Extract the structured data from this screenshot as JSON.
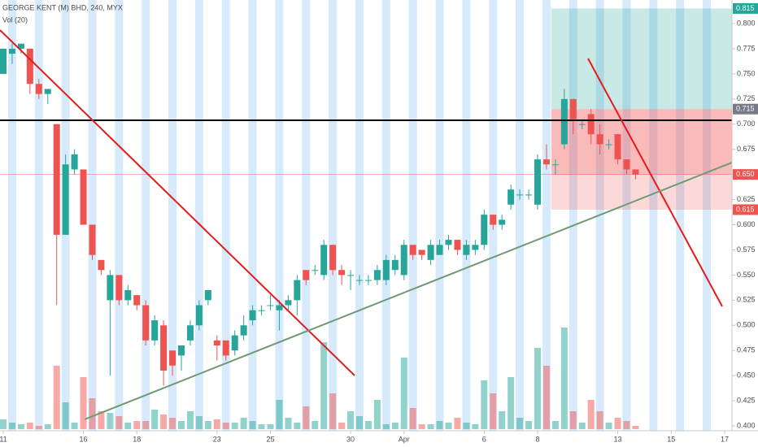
{
  "chart_data": {
    "type": "candlestick",
    "title": "GEORGE KENT (M) BHD, 240, MYX",
    "subtitle": "Vol (20)",
    "categories": [
      "11",
      null,
      null,
      null,
      null,
      null,
      null,
      null,
      null,
      "16",
      null,
      null,
      null,
      null,
      null,
      "18",
      null,
      null,
      null,
      null,
      null,
      null,
      null,
      null,
      "23",
      null,
      null,
      null,
      null,
      null,
      "25",
      null,
      null,
      null,
      null,
      null,
      null,
      null,
      null,
      "30",
      null,
      null,
      null,
      null,
      null,
      "Apr",
      null,
      null,
      null,
      null,
      null,
      null,
      null,
      null,
      "6",
      null,
      null,
      null,
      null,
      null,
      "8",
      null,
      null,
      null,
      null,
      null,
      null,
      null,
      null,
      "13",
      null,
      null,
      null,
      null,
      null,
      "15",
      null,
      null,
      null,
      null,
      null,
      "17"
    ],
    "open": [
      0.75,
      0.77,
      0.775,
      0.775,
      0.74,
      0.73,
      0.7,
      0.59,
      0.655,
      0.655,
      0.6,
      0.565,
      0.525,
      0.55,
      0.525,
      0.53,
      0.52,
      0.485,
      0.5,
      0.475,
      0.47,
      0.485,
      0.5,
      0.525,
      0.485,
      0.485,
      0.475,
      0.49,
      0.505,
      0.515,
      0.52,
      0.515,
      0.52,
      0.525,
      0.555,
      0.555,
      0.55,
      0.58,
      0.555,
      0.55,
      0.545,
      0.545,
      0.545,
      0.545,
      0.555,
      0.55,
      0.58,
      0.575,
      0.565,
      0.57,
      0.58,
      0.585,
      0.57,
      0.575,
      0.58,
      0.61,
      0.6,
      0.62,
      0.63,
      0.63,
      0.62,
      0.665,
      0.66,
      0.68,
      0.725,
      0.7,
      0.71,
      0.69,
      0.68,
      0.69,
      0.665,
      0.655,
      null,
      null,
      null,
      null,
      null,
      null,
      null,
      null,
      null,
      null
    ],
    "high": [
      0.775,
      0.78,
      0.78,
      0.775,
      0.745,
      0.735,
      0.7,
      0.67,
      0.675,
      0.655,
      0.6,
      0.565,
      0.555,
      0.55,
      0.54,
      0.53,
      0.525,
      0.51,
      0.505,
      0.475,
      0.48,
      0.505,
      0.525,
      0.535,
      0.49,
      0.485,
      0.495,
      0.51,
      0.52,
      0.52,
      0.53,
      0.525,
      0.53,
      0.55,
      0.555,
      0.56,
      0.585,
      0.58,
      0.56,
      0.555,
      0.55,
      0.55,
      0.56,
      0.57,
      0.57,
      0.585,
      0.58,
      0.575,
      0.585,
      0.585,
      0.59,
      0.585,
      0.585,
      0.585,
      0.615,
      0.61,
      0.61,
      0.64,
      0.635,
      0.635,
      0.67,
      0.68,
      0.665,
      0.735,
      0.725,
      0.705,
      0.715,
      0.7,
      0.685,
      0.69,
      0.665,
      0.655,
      null,
      null,
      null,
      null,
      null,
      null,
      null,
      null,
      null,
      null
    ],
    "low": [
      0.75,
      0.76,
      0.77,
      0.73,
      0.725,
      0.72,
      0.52,
      0.59,
      0.65,
      0.6,
      0.565,
      0.55,
      0.45,
      0.52,
      0.52,
      0.515,
      0.48,
      0.48,
      0.44,
      0.45,
      0.455,
      0.48,
      0.495,
      0.52,
      0.465,
      0.465,
      0.47,
      0.485,
      0.5,
      0.51,
      0.515,
      0.495,
      0.515,
      0.51,
      0.54,
      0.55,
      0.545,
      0.55,
      0.54,
      0.535,
      0.54,
      0.54,
      0.54,
      0.54,
      0.55,
      0.545,
      0.565,
      0.565,
      0.56,
      0.57,
      0.575,
      0.57,
      0.565,
      0.57,
      0.575,
      0.595,
      0.595,
      0.615,
      0.625,
      0.625,
      0.615,
      0.655,
      0.65,
      0.675,
      0.69,
      0.695,
      0.68,
      0.67,
      0.675,
      0.66,
      0.65,
      0.645,
      null,
      null,
      null,
      null,
      null,
      null,
      null,
      null,
      null,
      null
    ],
    "close": [
      0.775,
      0.775,
      0.78,
      0.74,
      0.73,
      0.735,
      0.59,
      0.66,
      0.67,
      0.6,
      0.57,
      0.555,
      0.55,
      0.525,
      0.535,
      0.52,
      0.485,
      0.505,
      0.455,
      0.46,
      0.48,
      0.5,
      0.52,
      0.535,
      0.48,
      0.47,
      0.49,
      0.5,
      0.515,
      0.515,
      0.52,
      0.52,
      0.525,
      0.545,
      0.545,
      0.555,
      0.58,
      0.555,
      0.55,
      0.55,
      0.545,
      0.545,
      0.555,
      0.565,
      0.565,
      0.58,
      0.57,
      0.57,
      0.58,
      0.58,
      0.585,
      0.575,
      0.58,
      0.58,
      0.61,
      0.6,
      0.605,
      0.635,
      0.63,
      0.63,
      0.665,
      0.66,
      0.66,
      0.725,
      0.705,
      0.7,
      0.69,
      0.68,
      0.68,
      0.665,
      0.655,
      0.65,
      null,
      null,
      null,
      null,
      null,
      null,
      null,
      null,
      null,
      null
    ],
    "volume": [
      12,
      8,
      6,
      8,
      4,
      6,
      78,
      33,
      8,
      64,
      38,
      22,
      20,
      16,
      8,
      10,
      10,
      24,
      18,
      14,
      10,
      22,
      16,
      10,
      12,
      8,
      8,
      14,
      10,
      6,
      6,
      36,
      14,
      8,
      28,
      10,
      107,
      44,
      8,
      22,
      16,
      10,
      36,
      6,
      8,
      88,
      26,
      6,
      6,
      10,
      8,
      14,
      8,
      6,
      60,
      44,
      22,
      64,
      14,
      10,
      100,
      78,
      10,
      125,
      22,
      8,
      36,
      22,
      8,
      14,
      10,
      4,
      null,
      null,
      null,
      null,
      null,
      null,
      null,
      null,
      null,
      null
    ],
    "up_color": "#26a69a",
    "down_color": "#ef5350",
    "ylim": [
      0.3975,
      0.8225
    ],
    "yticks": [
      {
        "value": 0.4,
        "label": "0.400"
      },
      {
        "value": 0.425,
        "label": "0.425"
      },
      {
        "value": 0.45,
        "label": "0.450"
      },
      {
        "value": 0.475,
        "label": "0.475"
      },
      {
        "value": 0.5,
        "label": "0.500"
      },
      {
        "value": 0.525,
        "label": "0.525"
      },
      {
        "value": 0.55,
        "label": "0.550"
      },
      {
        "value": 0.575,
        "label": "0.575"
      },
      {
        "value": 0.6,
        "label": "0.600"
      },
      {
        "value": 0.625,
        "label": "0.625"
      },
      {
        "value": 0.65,
        "label": "0.650"
      },
      {
        "value": 0.675,
        "label": "0.675"
      },
      {
        "value": 0.7,
        "label": "0.700"
      },
      {
        "value": 0.725,
        "label": "0.725"
      },
      {
        "value": 0.75,
        "label": "0.750"
      },
      {
        "value": 0.775,
        "label": "0.775"
      },
      {
        "value": 0.8,
        "label": "0.800"
      }
    ],
    "price_labels": [
      {
        "value": 0.815,
        "label": "0.815",
        "color": "#26a69a"
      },
      {
        "value": 0.715,
        "label": "0.715",
        "color": "#787b86"
      },
      {
        "value": 0.65,
        "label": "0.650",
        "color": "#ef5350"
      },
      {
        "value": 0.615,
        "label": "0.615",
        "color": "#ef5350"
      }
    ]
  }
}
